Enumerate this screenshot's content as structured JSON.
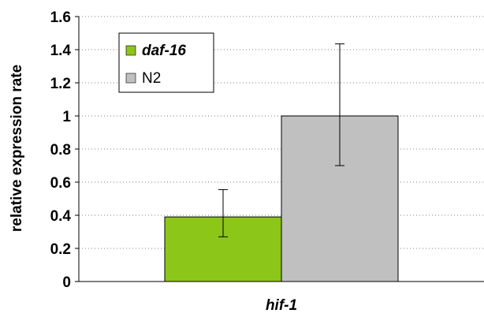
{
  "chart_data": {
    "type": "bar",
    "title": "",
    "xlabel": "",
    "ylabel": "relative expression rate",
    "categories": [
      "hif-1"
    ],
    "ylim": [
      0,
      1.6
    ],
    "yticks": [
      "0",
      "0.2",
      "0.4",
      "0.6",
      "0.8",
      "1",
      "1.2",
      "1.4",
      "1.6"
    ],
    "grid": "horizontal dotted",
    "legend_position": "top-left",
    "series": [
      {
        "name": "daf-16",
        "values": [
          0.39
        ],
        "error": [
          [
            0.27,
            0.555
          ]
        ],
        "color": "#8cc619",
        "name_style": "italic-bold"
      },
      {
        "name": "N2",
        "values": [
          1.0
        ],
        "error": [
          [
            0.7,
            1.435
          ]
        ],
        "color": "#c0c0c0",
        "name_style": "normal"
      }
    ]
  }
}
